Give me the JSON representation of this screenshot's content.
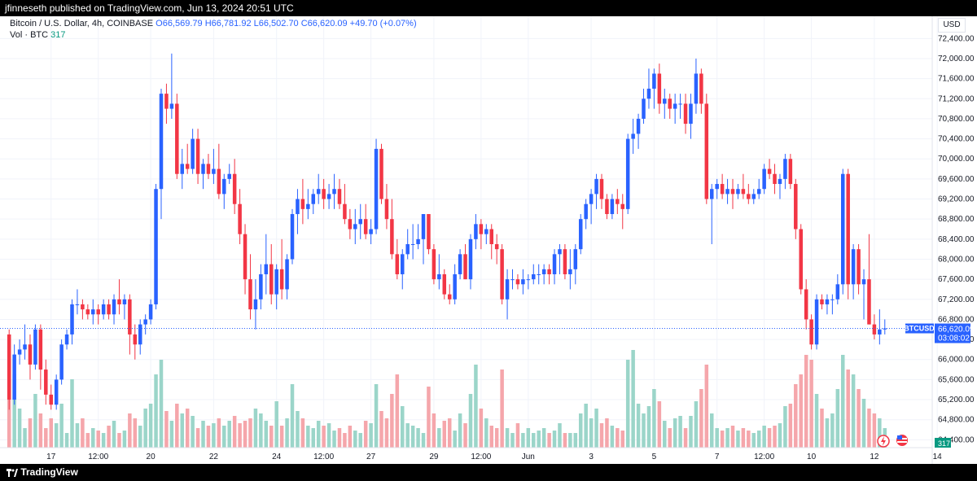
{
  "header": {
    "published": "jfinneseth published on TradingView.com, Jun 13, 2024 20:51 UTC"
  },
  "legend": {
    "title": "Bitcoin / U.S. Dollar, 4h, COINBASE",
    "ohlc": "O66,569.79 H66,781.92 L66,502.70 C66,620.09 +49.70 (+0.07%)",
    "vol_label": "Vol · BTC",
    "vol_value": "317"
  },
  "axis": {
    "currency": "USD",
    "price_tag_symbol": "BTCUSD",
    "price_tag_value": "66,620.09",
    "price_tag_time": "03:08:02",
    "volume_tag": "317"
  },
  "footer": {
    "brand": "TradingView"
  },
  "colors": {
    "up": "#2962ff",
    "down": "#f23645",
    "vol_up": "#9bd5c9",
    "vol_down": "#f5a6ab"
  },
  "chart_data": {
    "type": "candlestick",
    "title": "Bitcoin / U.S. Dollar, 4h, COINBASE",
    "ylim": [
      64000,
      72600
    ],
    "y_ticks": [
      64400,
      64800,
      65200,
      65600,
      66000,
      66400,
      66800,
      67200,
      67600,
      68000,
      68400,
      68800,
      69200,
      69600,
      70000,
      70400,
      70800,
      71200,
      71600,
      72000,
      72400
    ],
    "y_tick_labels": [
      "64,400.00",
      "64,800.00",
      "65,200.00",
      "65,600.00",
      "66,000.00",
      "66,400.00",
      "66,800.00",
      "67,200.00",
      "67,600.00",
      "68,000.00",
      "68,400.00",
      "68,800.00",
      "69,200.00",
      "69,600.00",
      "70,000.00",
      "70,400.00",
      "70,800.00",
      "71,200.00",
      "71,600.00",
      "72,000.00",
      "72,400.00"
    ],
    "x_ticks": [
      {
        "label": "17",
        "index": 8
      },
      {
        "label": "12:00",
        "index": 17
      },
      {
        "label": "20",
        "index": 27
      },
      {
        "label": "22",
        "index": 39
      },
      {
        "label": "24",
        "index": 51
      },
      {
        "label": "12:00",
        "index": 60
      },
      {
        "label": "27",
        "index": 69
      },
      {
        "label": "29",
        "index": 81
      },
      {
        "label": "12:00",
        "index": 90
      },
      {
        "label": "Jun",
        "index": 99
      },
      {
        "label": "3",
        "index": 111
      },
      {
        "label": "5",
        "index": 123
      },
      {
        "label": "7",
        "index": 135
      },
      {
        "label": "12:00",
        "index": 144
      },
      {
        "label": "10",
        "index": 153
      },
      {
        "label": "12",
        "index": 165
      },
      {
        "label": "14",
        "index": 177
      }
    ],
    "last_price": 66620.09,
    "candles": [
      [
        66500,
        66600,
        65000,
        65200,
        180
      ],
      [
        65200,
        66300,
        65100,
        66100,
        150
      ],
      [
        66100,
        66400,
        65900,
        66200,
        80
      ],
      [
        66200,
        66700,
        66000,
        66300,
        40
      ],
      [
        66300,
        66500,
        65600,
        65900,
        60
      ],
      [
        65900,
        66700,
        65800,
        66600,
        110
      ],
      [
        66600,
        66700,
        65400,
        65800,
        70
      ],
      [
        65800,
        66000,
        65100,
        65300,
        40
      ],
      [
        65300,
        65500,
        65000,
        65100,
        60
      ],
      [
        65100,
        65700,
        65000,
        65600,
        50
      ],
      [
        65600,
        66400,
        65500,
        66300,
        90
      ],
      [
        66300,
        66600,
        66200,
        66500,
        30
      ],
      [
        66500,
        67200,
        66300,
        67100,
        140
      ],
      [
        67100,
        67400,
        66900,
        67100,
        50
      ],
      [
        67100,
        67200,
        66800,
        67000,
        60
      ],
      [
        67000,
        67100,
        66800,
        66900,
        30
      ],
      [
        66900,
        67200,
        66700,
        67000,
        40
      ],
      [
        67000,
        67100,
        66700,
        66900,
        35
      ],
      [
        66900,
        67200,
        66800,
        67100,
        30
      ],
      [
        67100,
        67200,
        66800,
        66900,
        45
      ],
      [
        66900,
        67300,
        66700,
        67200,
        55
      ],
      [
        67200,
        67600,
        66900,
        67100,
        30
      ],
      [
        67100,
        67300,
        66800,
        67200,
        35
      ],
      [
        67200,
        67300,
        66100,
        66500,
        70
      ],
      [
        66500,
        66700,
        66000,
        66300,
        60
      ],
      [
        66300,
        66800,
        66100,
        66700,
        45
      ],
      [
        66700,
        66900,
        66500,
        66800,
        80
      ],
      [
        66800,
        67200,
        66700,
        67100,
        90
      ],
      [
        67100,
        69500,
        67000,
        69400,
        150
      ],
      [
        69400,
        71400,
        68800,
        71300,
        180
      ],
      [
        71300,
        71500,
        70700,
        71000,
        75
      ],
      [
        71000,
        72100,
        70800,
        71100,
        55
      ],
      [
        71100,
        71300,
        69600,
        69700,
        90
      ],
      [
        69700,
        70200,
        69400,
        69900,
        70
      ],
      [
        69900,
        70300,
        69700,
        69800,
        80
      ],
      [
        69800,
        70600,
        69700,
        70400,
        65
      ],
      [
        70400,
        70600,
        69500,
        69700,
        40
      ],
      [
        69700,
        70000,
        69400,
        69900,
        55
      ],
      [
        69900,
        70100,
        69600,
        69700,
        45
      ],
      [
        69700,
        70200,
        69500,
        69800,
        50
      ],
      [
        69800,
        70300,
        69200,
        69300,
        60
      ],
      [
        69300,
        69700,
        69000,
        69600,
        45
      ],
      [
        69600,
        69900,
        69500,
        69700,
        55
      ],
      [
        69700,
        70000,
        68900,
        69100,
        65
      ],
      [
        69100,
        69400,
        68300,
        68500,
        50
      ],
      [
        68500,
        68700,
        67300,
        67600,
        55
      ],
      [
        67600,
        68100,
        66800,
        67000,
        60
      ],
      [
        67000,
        67600,
        66600,
        67200,
        80
      ],
      [
        67200,
        67900,
        67000,
        67700,
        70
      ],
      [
        67700,
        68500,
        67300,
        67900,
        55
      ],
      [
        67900,
        68300,
        67100,
        67300,
        45
      ],
      [
        67300,
        67900,
        67000,
        67800,
        95
      ],
      [
        67800,
        68400,
        67200,
        67400,
        45
      ],
      [
        67400,
        68100,
        67200,
        68000,
        60
      ],
      [
        68000,
        69000,
        67900,
        68900,
        130
      ],
      [
        68900,
        69400,
        68500,
        69200,
        75
      ],
      [
        69200,
        69600,
        68700,
        69000,
        60
      ],
      [
        69000,
        69400,
        68800,
        69100,
        45
      ],
      [
        69100,
        69400,
        68900,
        69300,
        40
      ],
      [
        69300,
        69700,
        69100,
        69400,
        55
      ],
      [
        69400,
        69600,
        69000,
        69200,
        45
      ],
      [
        69200,
        69500,
        69000,
        69300,
        50
      ],
      [
        69300,
        69700,
        69000,
        69400,
        35
      ],
      [
        69400,
        69600,
        69000,
        69100,
        40
      ],
      [
        69100,
        69500,
        68700,
        68800,
        30
      ],
      [
        68800,
        69000,
        68400,
        68600,
        45
      ],
      [
        68600,
        69000,
        68300,
        68700,
        35
      ],
      [
        68700,
        69100,
        68400,
        68800,
        30
      ],
      [
        68800,
        69100,
        68400,
        68500,
        55
      ],
      [
        68500,
        68800,
        68300,
        68600,
        50
      ],
      [
        68600,
        70400,
        68500,
        70200,
        130
      ],
      [
        70200,
        70300,
        69100,
        69200,
        75
      ],
      [
        69200,
        69500,
        68600,
        68800,
        60
      ],
      [
        68800,
        69200,
        68000,
        68100,
        110
      ],
      [
        68100,
        68400,
        67600,
        67700,
        150
      ],
      [
        67700,
        68200,
        67400,
        68100,
        85
      ],
      [
        68100,
        68600,
        68000,
        68300,
        50
      ],
      [
        68300,
        68700,
        68000,
        68300,
        45
      ],
      [
        68300,
        68700,
        68200,
        68400,
        40
      ],
      [
        68400,
        68900,
        67900,
        68900,
        30
      ],
      [
        68900,
        68900,
        68100,
        68200,
        125
      ],
      [
        68200,
        68300,
        67500,
        67600,
        70
      ],
      [
        67600,
        68100,
        67400,
        67700,
        40
      ],
      [
        67700,
        67800,
        67200,
        67300,
        55
      ],
      [
        67300,
        67500,
        67100,
        67200,
        60
      ],
      [
        67200,
        67900,
        67100,
        67700,
        35
      ],
      [
        67700,
        68200,
        67600,
        68100,
        70
      ],
      [
        68100,
        68300,
        67600,
        67600,
        50
      ],
      [
        67600,
        68500,
        67400,
        68400,
        110
      ],
      [
        68400,
        68900,
        68200,
        68700,
        170
      ],
      [
        68700,
        68800,
        68200,
        68500,
        80
      ],
      [
        68500,
        68700,
        68300,
        68600,
        60
      ],
      [
        68600,
        68700,
        68000,
        68300,
        45
      ],
      [
        68300,
        68500,
        67900,
        68200,
        40
      ],
      [
        68200,
        68300,
        67100,
        67200,
        160
      ],
      [
        67200,
        67800,
        66800,
        67600,
        40
      ],
      [
        67600,
        67800,
        67400,
        67600,
        30
      ],
      [
        67600,
        67700,
        67400,
        67500,
        50
      ],
      [
        67500,
        67800,
        67300,
        67600,
        30
      ],
      [
        67600,
        67700,
        67400,
        67600,
        40
      ],
      [
        67600,
        67900,
        67500,
        67700,
        30
      ],
      [
        67700,
        67900,
        67500,
        67700,
        35
      ],
      [
        67700,
        67900,
        67500,
        67800,
        40
      ],
      [
        67800,
        67900,
        67500,
        67700,
        30
      ],
      [
        67700,
        68200,
        67500,
        68100,
        35
      ],
      [
        68100,
        68300,
        67700,
        68200,
        50
      ],
      [
        68200,
        68300,
        67600,
        67700,
        30
      ],
      [
        67700,
        68200,
        67400,
        67800,
        30
      ],
      [
        67800,
        68300,
        67500,
        68200,
        30
      ],
      [
        68200,
        68900,
        68100,
        68800,
        70
      ],
      [
        68800,
        69200,
        68600,
        69100,
        90
      ],
      [
        69100,
        69400,
        68700,
        69300,
        60
      ],
      [
        69300,
        69700,
        69000,
        69600,
        80
      ],
      [
        69600,
        69700,
        69000,
        69200,
        50
      ],
      [
        69200,
        69300,
        68800,
        68900,
        60
      ],
      [
        68900,
        69300,
        68800,
        69200,
        45
      ],
      [
        69200,
        69400,
        68900,
        69100,
        40
      ],
      [
        69100,
        69300,
        68600,
        69000,
        35
      ],
      [
        69000,
        70500,
        68900,
        70400,
        180
      ],
      [
        70400,
        70800,
        70100,
        70500,
        200
      ],
      [
        70500,
        70900,
        70200,
        70800,
        90
      ],
      [
        70800,
        71400,
        70700,
        71200,
        70
      ],
      [
        71200,
        71800,
        71000,
        71400,
        85
      ],
      [
        71400,
        71800,
        71000,
        71700,
        120
      ],
      [
        71700,
        71900,
        70900,
        71100,
        95
      ],
      [
        71100,
        71400,
        70800,
        71200,
        55
      ],
      [
        71200,
        71300,
        70800,
        71000,
        40
      ],
      [
        71000,
        71300,
        70700,
        71100,
        60
      ],
      [
        71100,
        71300,
        70800,
        71100,
        65
      ],
      [
        71100,
        71300,
        70500,
        70700,
        40
      ],
      [
        70700,
        71300,
        70400,
        71100,
        65
      ],
      [
        71100,
        72000,
        70900,
        71700,
        95
      ],
      [
        71700,
        71800,
        70900,
        71100,
        120
      ],
      [
        71100,
        71300,
        69100,
        69200,
        170
      ],
      [
        69200,
        69500,
        68300,
        69400,
        70
      ],
      [
        69400,
        69600,
        69200,
        69500,
        40
      ],
      [
        69500,
        69700,
        69200,
        69300,
        35
      ],
      [
        69300,
        69600,
        69100,
        69400,
        40
      ],
      [
        69400,
        69600,
        69000,
        69300,
        45
      ],
      [
        69300,
        69500,
        69200,
        69400,
        35
      ],
      [
        69400,
        69700,
        69200,
        69300,
        40
      ],
      [
        69300,
        69500,
        69100,
        69200,
        35
      ],
      [
        69200,
        69400,
        69100,
        69300,
        30
      ],
      [
        69300,
        69600,
        69200,
        69400,
        35
      ],
      [
        69400,
        69900,
        69300,
        69800,
        45
      ],
      [
        69800,
        70000,
        69600,
        69700,
        40
      ],
      [
        69700,
        69900,
        69300,
        69500,
        45
      ],
      [
        69500,
        69700,
        69200,
        69600,
        50
      ],
      [
        69600,
        70100,
        69400,
        70000,
        85
      ],
      [
        70000,
        70100,
        69400,
        69500,
        90
      ],
      [
        69500,
        69600,
        68400,
        68600,
        130
      ],
      [
        68600,
        68700,
        67300,
        67400,
        150
      ],
      [
        67400,
        67600,
        66600,
        66800,
        190
      ],
      [
        66800,
        66900,
        66200,
        66300,
        180
      ],
      [
        66300,
        67300,
        66200,
        67200,
        110
      ],
      [
        67200,
        67300,
        67000,
        67100,
        80
      ],
      [
        67100,
        67300,
        66900,
        67200,
        60
      ],
      [
        67200,
        67300,
        66900,
        67200,
        70
      ],
      [
        67200,
        67700,
        67100,
        67500,
        120
      ],
      [
        67500,
        69800,
        67300,
        69700,
        190
      ],
      [
        69700,
        69800,
        67200,
        67500,
        160
      ],
      [
        67500,
        68300,
        67200,
        68200,
        150
      ],
      [
        68200,
        68300,
        67300,
        67500,
        120
      ],
      [
        67500,
        67800,
        66800,
        67600,
        100
      ],
      [
        67600,
        68500,
        66700,
        66700,
        80
      ],
      [
        66700,
        66900,
        66400,
        66500,
        70
      ],
      [
        66500,
        67000,
        66300,
        66600,
        60
      ],
      [
        66600,
        66800,
        66500,
        66620,
        40
      ]
    ]
  }
}
